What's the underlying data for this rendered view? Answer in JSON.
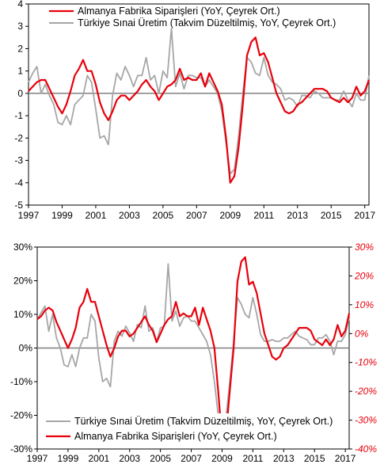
{
  "colors": {
    "germany": "#e8000b",
    "turkey": "#a6a6a6",
    "zero": "#7f7f7f",
    "frame": "#000000",
    "right_axis": "#e8000b"
  },
  "chart_data": [
    {
      "type": "line",
      "x_ticks": [
        "1997",
        "1999",
        "2001",
        "2003",
        "2005",
        "2007",
        "2009",
        "2011",
        "2013",
        "2015",
        "2017"
      ],
      "y_ticks": [
        "4",
        "3",
        "2",
        "1",
        "0",
        "-1",
        "-2",
        "-3",
        "-4",
        "-5"
      ],
      "ylim": [
        -5,
        4
      ],
      "xlim": [
        1997,
        2017.25
      ],
      "legend_position": "top",
      "series": [
        {
          "name": "Almanya Fabrika Siparişleri (YoY, Çeyrek Ort.)",
          "color": "#e8000b",
          "x": [
            1997,
            1997.25,
            1997.5,
            1997.75,
            1998,
            1998.25,
            1998.5,
            1998.75,
            1999,
            1999.25,
            1999.5,
            1999.75,
            2000,
            2000.25,
            2000.5,
            2000.75,
            2001,
            2001.25,
            2001.5,
            2001.75,
            2002,
            2002.25,
            2002.5,
            2002.75,
            2003,
            2003.25,
            2003.5,
            2003.75,
            2004,
            2004.25,
            2004.5,
            2004.75,
            2005,
            2005.25,
            2005.5,
            2005.75,
            2006,
            2006.25,
            2006.5,
            2006.75,
            2007,
            2007.25,
            2007.5,
            2007.75,
            2008,
            2008.25,
            2008.5,
            2008.75,
            2009,
            2009.25,
            2009.5,
            2009.75,
            2010,
            2010.25,
            2010.5,
            2010.75,
            2011,
            2011.25,
            2011.5,
            2011.75,
            2012,
            2012.25,
            2012.5,
            2012.75,
            2013,
            2013.25,
            2013.5,
            2013.75,
            2014,
            2014.25,
            2014.5,
            2014.75,
            2015,
            2015.25,
            2015.5,
            2015.75,
            2016,
            2016.25,
            2016.5,
            2016.75,
            2017,
            2017.25
          ],
          "values": [
            0.1,
            0.3,
            0.5,
            0.6,
            0.6,
            0.2,
            -0.2,
            -0.6,
            -0.9,
            -0.5,
            0.1,
            0.8,
            1.1,
            1.5,
            1.0,
            1.0,
            0.4,
            -0.4,
            -0.9,
            -1.2,
            -0.8,
            -0.3,
            -0.1,
            -0.1,
            -0.3,
            -0.1,
            0.1,
            0.4,
            0.6,
            0.3,
            0.1,
            -0.3,
            0.0,
            0.3,
            0.4,
            0.6,
            1.1,
            0.6,
            0.7,
            0.6,
            0.6,
            0.9,
            0.3,
            0.9,
            0.5,
            0.1,
            -0.5,
            -2.0,
            -4.0,
            -3.7,
            -2.4,
            -0.5,
            1.7,
            2.3,
            2.5,
            1.7,
            1.8,
            1.4,
            0.7,
            0.0,
            -0.4,
            -0.8,
            -0.9,
            -0.8,
            -0.5,
            -0.4,
            -0.2,
            0.0,
            0.2,
            0.2,
            0.2,
            0.1,
            -0.2,
            -0.3,
            -0.4,
            -0.2,
            -0.4,
            -0.2,
            0.3,
            -0.1,
            0.1,
            0.6
          ]
        },
        {
          "name": "Türkiye Sınai Üretim (Takvim Düzeltilmiş, YoY, Çeyrek Ort.)",
          "color": "#a6a6a6",
          "x": [
            1997,
            1997.25,
            1997.5,
            1997.75,
            1998,
            1998.25,
            1998.5,
            1998.75,
            1999,
            1999.25,
            1999.5,
            1999.75,
            2000,
            2000.25,
            2000.5,
            2000.75,
            2001,
            2001.25,
            2001.5,
            2001.75,
            2002,
            2002.25,
            2002.5,
            2002.75,
            2003,
            2003.25,
            2003.5,
            2003.75,
            2004,
            2004.25,
            2004.5,
            2004.75,
            2005,
            2005.25,
            2005.5,
            2005.75,
            2006,
            2006.25,
            2006.5,
            2006.75,
            2007,
            2007.25,
            2007.5,
            2007.75,
            2008,
            2008.25,
            2008.5,
            2008.75,
            2009,
            2009.25,
            2009.5,
            2009.75,
            2010,
            2010.25,
            2010.5,
            2010.75,
            2011,
            2011.25,
            2011.5,
            2011.75,
            2012,
            2012.25,
            2012.5,
            2012.75,
            2013,
            2013.25,
            2013.5,
            2013.75,
            2014,
            2014.25,
            2014.5,
            2014.75,
            2015,
            2015.25,
            2015.5,
            2015.75,
            2016,
            2016.25,
            2016.5,
            2016.75,
            2017,
            2017.25
          ],
          "values": [
            0.5,
            0.9,
            1.2,
            0.0,
            0.4,
            -0.1,
            -0.5,
            -1.3,
            -1.4,
            -1.0,
            -1.4,
            -0.5,
            -0.3,
            -0.1,
            0.8,
            0.5,
            -0.7,
            -2.0,
            -1.9,
            -2.3,
            -0.1,
            0.9,
            0.6,
            1.2,
            0.8,
            0.3,
            0.8,
            0.8,
            1.6,
            0.6,
            0.8,
            0.0,
            1.0,
            0.7,
            2.9,
            0.3,
            0.9,
            0.2,
            0.8,
            0.8,
            0.7,
            0.7,
            0.3,
            0.6,
            0.3,
            0.0,
            -0.8,
            -2.2,
            -3.6,
            -3.4,
            -1.9,
            0.0,
            1.6,
            1.4,
            0.9,
            0.8,
            1.6,
            0.8,
            0.5,
            0.4,
            0.2,
            -0.3,
            -0.2,
            -0.3,
            -0.6,
            -0.1,
            -0.1,
            -0.2,
            0.1,
            0.0,
            -0.2,
            -0.2,
            -0.2,
            -0.3,
            -0.3,
            0.1,
            -0.3,
            -0.6,
            0.0,
            -0.3,
            -0.3,
            0.8
          ]
        }
      ]
    },
    {
      "type": "line",
      "x_ticks": [
        "1997",
        "1999",
        "2001",
        "2003",
        "2005",
        "2007",
        "2009",
        "2011",
        "2013",
        "2015",
        "2017"
      ],
      "y_ticks_left": [
        "30%",
        "20%",
        "10%",
        "0%",
        "-10%",
        "-20%",
        "-30%"
      ],
      "y_ticks_right": [
        "30%",
        "20%",
        "10%",
        "0%",
        "-10%",
        "-20%",
        "-30%",
        "-40%"
      ],
      "ylim_left": [
        -30,
        30
      ],
      "ylim_right": [
        -40,
        30
      ],
      "xlim": [
        1997,
        2017.25
      ],
      "legend_position": "bottom",
      "series": [
        {
          "name": "Türkiye Sınai Üretim (Takvim Düzeltilmiş, YoY, Çeyrek Ort.)",
          "color": "#a6a6a6",
          "axis": "left",
          "x": [
            1997,
            1997.25,
            1997.5,
            1997.75,
            1998,
            1998.25,
            1998.5,
            1998.75,
            1999,
            1999.25,
            1999.5,
            1999.75,
            2000,
            2000.25,
            2000.5,
            2000.75,
            2001,
            2001.25,
            2001.5,
            2001.75,
            2002,
            2002.25,
            2002.5,
            2002.75,
            2003,
            2003.25,
            2003.5,
            2003.75,
            2004,
            2004.25,
            2004.5,
            2004.75,
            2005,
            2005.25,
            2005.5,
            2005.75,
            2006,
            2006.25,
            2006.5,
            2006.75,
            2007,
            2007.25,
            2007.5,
            2007.75,
            2008,
            2008.25,
            2008.5,
            2008.75,
            2009,
            2009.25,
            2009.5,
            2009.75,
            2010,
            2010.25,
            2010.5,
            2010.75,
            2011,
            2011.25,
            2011.5,
            2011.75,
            2012,
            2012.25,
            2012.5,
            2012.75,
            2013,
            2013.25,
            2013.5,
            2013.75,
            2014,
            2014.25,
            2014.5,
            2014.75,
            2015,
            2015.25,
            2015.5,
            2015.75,
            2016,
            2016.25,
            2016.5,
            2016.75,
            2017,
            2017.25
          ],
          "values": [
            8.5,
            10.5,
            12.5,
            5.0,
            10.0,
            3.0,
            0.0,
            -5.0,
            -5.5,
            -2.0,
            -5.5,
            0.0,
            3.0,
            3.0,
            10.0,
            8.0,
            -3.0,
            -10.0,
            -9.0,
            -11.5,
            2.0,
            5.0,
            3.5,
            6.5,
            4.5,
            2.0,
            7.0,
            6.0,
            12.5,
            5.0,
            6.0,
            2.0,
            6.0,
            6.5,
            25.0,
            8.0,
            11.0,
            6.5,
            9.0,
            9.5,
            8.0,
            8.0,
            6.0,
            4.0,
            2.0,
            -2.0,
            -10.0,
            -20.0,
            -24.5,
            -21.0,
            -10.0,
            2.0,
            15.0,
            13.0,
            10.0,
            9.0,
            15.0,
            10.0,
            4.0,
            2.0,
            2.0,
            2.5,
            2.0,
            2.0,
            3.0,
            3.0,
            4.0,
            5.0,
            3.5,
            3.0,
            2.5,
            1.0,
            1.0,
            3.0,
            3.0,
            4.0,
            2.0,
            -2.0,
            2.0,
            2.0,
            4.0,
            9.0
          ]
        },
        {
          "name": "Almanya Fabrika Siparişleri (YoY, Çeyrek Ort.)",
          "color": "#e8000b",
          "axis": "right",
          "x": [
            1997,
            1997.25,
            1997.5,
            1997.75,
            1998,
            1998.25,
            1998.5,
            1998.75,
            1999,
            1999.25,
            1999.5,
            1999.75,
            2000,
            2000.25,
            2000.5,
            2000.75,
            2001,
            2001.25,
            2001.5,
            2001.75,
            2002,
            2002.25,
            2002.5,
            2002.75,
            2003,
            2003.25,
            2003.5,
            2003.75,
            2004,
            2004.25,
            2004.5,
            2004.75,
            2005,
            2005.25,
            2005.5,
            2005.75,
            2006,
            2006.25,
            2006.5,
            2006.75,
            2007,
            2007.25,
            2007.5,
            2007.75,
            2008,
            2008.25,
            2008.5,
            2008.75,
            2009,
            2009.25,
            2009.5,
            2009.75,
            2010,
            2010.25,
            2010.5,
            2010.75,
            2011,
            2011.25,
            2011.5,
            2011.75,
            2012,
            2012.25,
            2012.5,
            2012.75,
            2013,
            2013.25,
            2013.5,
            2013.75,
            2014,
            2014.25,
            2014.5,
            2014.75,
            2015,
            2015.25,
            2015.5,
            2015.75,
            2016,
            2016.25,
            2016.5,
            2016.75,
            2017,
            2017.25
          ],
          "values": [
            5.0,
            6.0,
            8.0,
            9.0,
            8.0,
            4.0,
            1.0,
            -2.0,
            -5.0,
            -2.0,
            2.0,
            9.0,
            11.0,
            15.5,
            11.0,
            11.0,
            6.0,
            1.0,
            -4.0,
            -8.0,
            -5.0,
            -1.0,
            1.0,
            1.0,
            -1.0,
            0.0,
            2.0,
            4.0,
            6.0,
            3.0,
            1.0,
            -3.0,
            0.0,
            3.0,
            5.0,
            6.0,
            11.0,
            6.0,
            7.0,
            6.0,
            6.0,
            9.0,
            3.0,
            9.0,
            5.0,
            1.0,
            -5.0,
            -20.0,
            -37.0,
            -35.0,
            -20.0,
            -5.0,
            18.0,
            25.0,
            26.5,
            17.0,
            18.0,
            14.0,
            7.0,
            0.0,
            -4.0,
            -8.0,
            -9.0,
            -8.0,
            -5.0,
            -4.0,
            -2.0,
            0.0,
            2.0,
            2.0,
            2.0,
            1.0,
            -2.0,
            -3.0,
            -4.0,
            -2.0,
            -4.0,
            -2.0,
            3.0,
            -1.0,
            1.0,
            7.0
          ]
        }
      ]
    }
  ]
}
